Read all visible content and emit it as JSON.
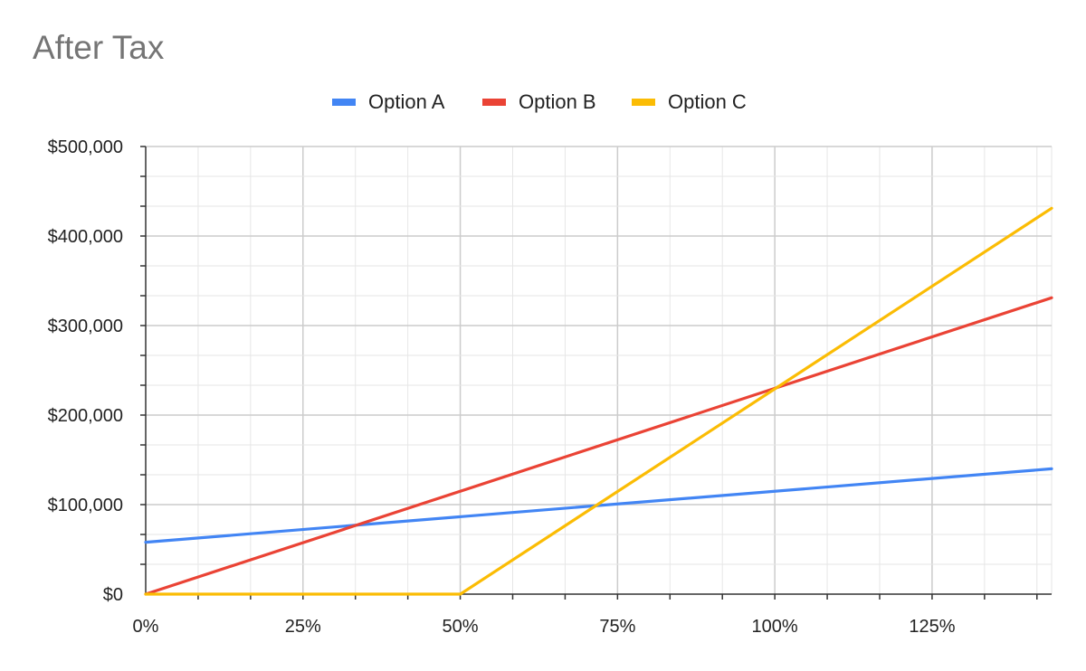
{
  "chart_data": {
    "type": "line",
    "title": "After Tax",
    "xlabel": "",
    "ylabel": "",
    "xlim": [
      0,
      1.44
    ],
    "ylim": [
      0,
      500000
    ],
    "x_ticks": [
      0,
      0.25,
      0.5,
      0.75,
      1.0,
      1.25
    ],
    "x_tick_labels": [
      "0%",
      "25%",
      "50%",
      "75%",
      "100%",
      "125%"
    ],
    "y_ticks": [
      0,
      100000,
      200000,
      300000,
      400000,
      500000
    ],
    "y_tick_labels": [
      "$0",
      "$100,000",
      "$200,000",
      "$300,000",
      "$400,000",
      "$500,000"
    ],
    "grid": true,
    "legend_position": "top",
    "series": [
      {
        "name": "Option A",
        "color": "#4285f4",
        "points": [
          [
            0,
            58000
          ],
          [
            1.44,
            140000
          ]
        ]
      },
      {
        "name": "Option B",
        "color": "#ea4335",
        "points": [
          [
            0,
            0
          ],
          [
            1.44,
            331000
          ]
        ]
      },
      {
        "name": "Option C",
        "color": "#fbbc04",
        "points": [
          [
            0,
            0
          ],
          [
            0.5,
            0
          ],
          [
            1.44,
            431000
          ]
        ]
      }
    ]
  }
}
